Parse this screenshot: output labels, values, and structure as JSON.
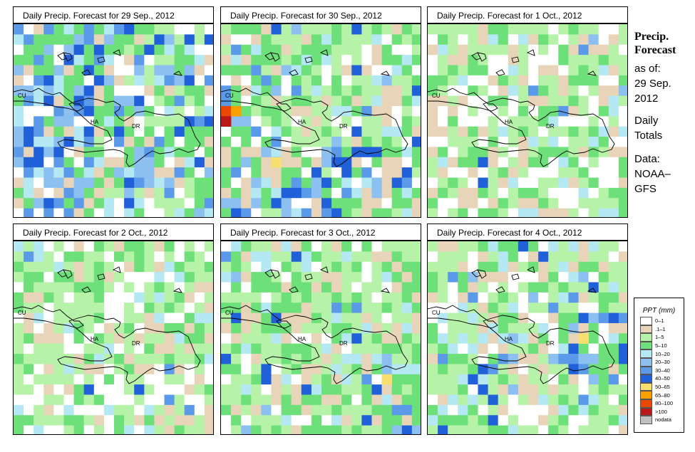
{
  "panels": [
    {
      "title": "Daily Precip. Forecast for  29 Sep., 2012",
      "seed": 11,
      "bias": "wet-west"
    },
    {
      "title": "Daily Precip. Forecast for  30 Sep., 2012",
      "seed": 23,
      "bias": "wet-south"
    },
    {
      "title": "Daily Precip. Forecast for  1 Oct., 2012",
      "seed": 37,
      "bias": "dry"
    },
    {
      "title": "Daily Precip. Forecast for  2 Oct., 2012",
      "seed": 41,
      "bias": "dry"
    },
    {
      "title": "Daily Precip. Forecast for  3 Oct., 2012",
      "seed": 53,
      "bias": "wet-se"
    },
    {
      "title": "Daily Precip. Forecast for  4 Oct., 2012",
      "seed": 67,
      "bias": "wet-east"
    }
  ],
  "map_labels": {
    "cuba": "CU",
    "haiti": "HA",
    "dominican_republic": "DR"
  },
  "side": {
    "head1": "Precip.",
    "head2": "Forecast",
    "asof": "as of:",
    "date1": "29 Sep.",
    "date2": "2012",
    "daily": "Daily",
    "totals": "Totals",
    "data": "Data:",
    "source1": "NOAA–",
    "source2": "GFS"
  },
  "legend": {
    "title": "PPT (mm)",
    "classes": [
      {
        "label": "0–1",
        "color": "#ffffff"
      },
      {
        "label": ".1–1",
        "color": "#e8d4b8"
      },
      {
        "label": "1–5",
        "color": "#b6f2a8"
      },
      {
        "label": "5–10",
        "color": "#6de07a"
      },
      {
        "label": "10–20",
        "color": "#b4e8f2"
      },
      {
        "label": "20–30",
        "color": "#8cc0f0"
      },
      {
        "label": "30–40",
        "color": "#5a9ae8"
      },
      {
        "label": "40–50",
        "color": "#2060d8"
      },
      {
        "label": "50–65",
        "color": "#f8e070"
      },
      {
        "label": "65–80",
        "color": "#f8a000"
      },
      {
        "label": "80–100",
        "color": "#e84800"
      },
      {
        "label": ">100",
        "color": "#b81818"
      },
      {
        "label": "nodata",
        "color": "#c0c0c0"
      }
    ]
  }
}
